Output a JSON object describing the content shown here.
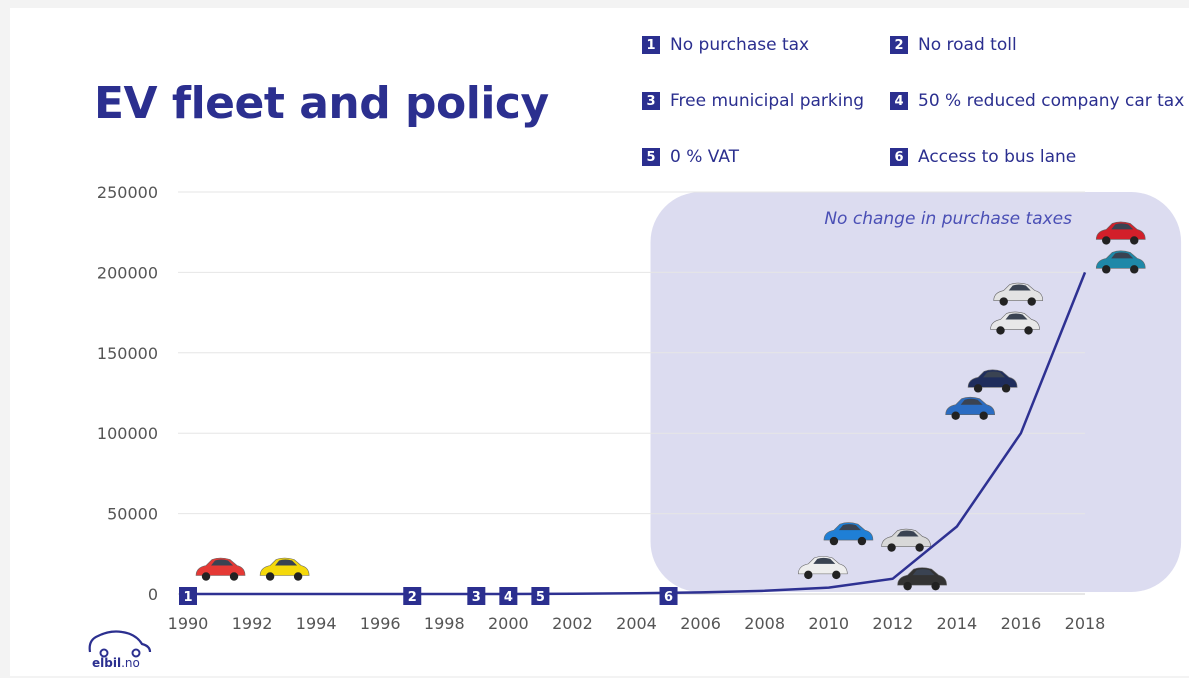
{
  "title": "EV fleet and policy",
  "legend": [
    {
      "num": "1",
      "label": "No purchase tax"
    },
    {
      "num": "2",
      "label": "No road toll"
    },
    {
      "num": "3",
      "label": "Free municipal parking"
    },
    {
      "num": "4",
      "label": "50 % reduced company car tax"
    },
    {
      "num": "5",
      "label": "0 % VAT"
    },
    {
      "num": "6",
      "label": "Access to bus lane"
    }
  ],
  "logo": {
    "brand": "elbil",
    "tld": ".no"
  },
  "colors": {
    "accent": "#2b2f8f",
    "line": "#2e3192",
    "shade": "#dcdcf0",
    "grid": "#e6e6e6",
    "tick": "#555555"
  },
  "chart_data": {
    "type": "line",
    "title": "",
    "xlabel": "",
    "ylabel": "",
    "ylim": [
      0,
      250000
    ],
    "y_ticks": [
      "0",
      "50000",
      "100000",
      "150000",
      "200000",
      "250000"
    ],
    "x_ticks": [
      "1990",
      "1992",
      "1994",
      "1996",
      "1998",
      "2000",
      "2002",
      "2004",
      "2006",
      "2008",
      "2010",
      "2012",
      "2014",
      "2016",
      "2018"
    ],
    "grid": "horizontal",
    "series": [
      {
        "x": [
          1990,
          1992,
          1994,
          1996,
          1998,
          2000,
          2002,
          2004,
          2006,
          2008,
          2010,
          2012,
          2014,
          2016,
          2018
        ],
        "values": [
          0,
          0,
          0,
          0,
          0,
          0,
          200,
          500,
          1000,
          2000,
          4000,
          9500,
          42000,
          100000,
          200000
        ]
      }
    ],
    "policy_markers": [
      {
        "num": "1",
        "year": 1990
      },
      {
        "num": "2",
        "year": 1997
      },
      {
        "num": "3",
        "year": 1999
      },
      {
        "num": "4",
        "year": 2000
      },
      {
        "num": "5",
        "year": 2001
      },
      {
        "num": "6",
        "year": 2005
      }
    ],
    "shaded_region": {
      "from_year": 2005,
      "to_year": 2021,
      "label": "No change in purchase taxes"
    },
    "car_images": [
      {
        "year": 1991,
        "value": 14000,
        "color": "#e53935",
        "icon": "car-icon"
      },
      {
        "year": 1993,
        "value": 14000,
        "color": "#f5d90a",
        "icon": "car-icon"
      },
      {
        "year": 2009.8,
        "value": 15000,
        "color": "#eeeeee",
        "icon": "car-icon"
      },
      {
        "year": 2010.6,
        "value": 36000,
        "color": "#1f7fd6",
        "icon": "car-icon"
      },
      {
        "year": 2012.4,
        "value": 32000,
        "color": "#d8d8d8",
        "icon": "car-icon"
      },
      {
        "year": 2012.9,
        "value": 8000,
        "color": "#333333",
        "icon": "car-icon"
      },
      {
        "year": 2014.4,
        "value": 114000,
        "color": "#2a6cc2",
        "icon": "car-icon"
      },
      {
        "year": 2015.1,
        "value": 131000,
        "color": "#1f2d5c",
        "icon": "car-icon"
      },
      {
        "year": 2015.8,
        "value": 167000,
        "color": "#e8e8e8",
        "icon": "car-icon"
      },
      {
        "year": 2015.9,
        "value": 185000,
        "color": "#e3e3e3",
        "icon": "car-icon"
      },
      {
        "year": 2019.1,
        "value": 205000,
        "color": "#1e88a8",
        "icon": "car-icon"
      },
      {
        "year": 2019.1,
        "value": 223000,
        "color": "#d21f2a",
        "icon": "car-icon"
      }
    ]
  }
}
